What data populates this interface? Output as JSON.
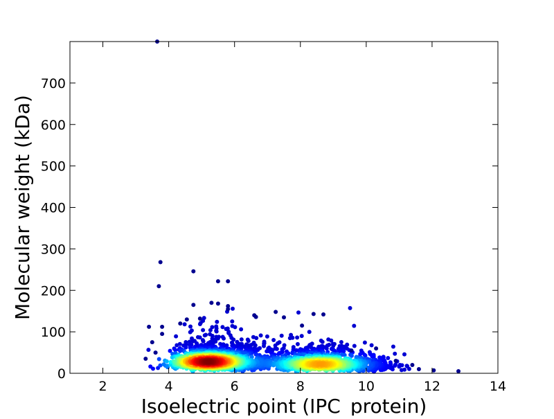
{
  "chart_data": {
    "type": "scatter",
    "title": "",
    "xlabel": "Isoelectric point (IPC_protein)",
    "ylabel": "Molecular weight (kDa)",
    "xlim": [
      1,
      14
    ],
    "ylim": [
      0,
      800
    ],
    "xticks": [
      2,
      4,
      6,
      8,
      10,
      12,
      14
    ],
    "yticks": [
      0,
      100,
      200,
      300,
      400,
      500,
      600,
      700
    ],
    "grid": false,
    "legend": "none",
    "colormap": "jet (point density: blue low, red high)",
    "colors": {
      "low": "#00008f",
      "mid_low": "#0080ff",
      "mid": "#40ffbf",
      "mid_high": "#ffff00",
      "high": "#ff4000",
      "max": "#800000"
    },
    "density_clusters": [
      {
        "center_pI": 5.2,
        "center_mw": 28,
        "peak": "max"
      },
      {
        "center_pI": 8.6,
        "center_mw": 22,
        "peak": "mid_high"
      }
    ],
    "outliers": [
      {
        "x": 3.65,
        "y": 800
      },
      {
        "x": 3.75,
        "y": 268
      },
      {
        "x": 4.75,
        "y": 246
      },
      {
        "x": 3.7,
        "y": 210
      },
      {
        "x": 5.5,
        "y": 222
      },
      {
        "x": 5.8,
        "y": 222
      },
      {
        "x": 5.3,
        "y": 170
      },
      {
        "x": 5.5,
        "y": 168
      },
      {
        "x": 4.75,
        "y": 165
      },
      {
        "x": 5.8,
        "y": 162
      },
      {
        "x": 5.8,
        "y": 155
      },
      {
        "x": 7.25,
        "y": 148
      },
      {
        "x": 8.4,
        "y": 143
      },
      {
        "x": 8.7,
        "y": 142
      },
      {
        "x": 6.6,
        "y": 140
      },
      {
        "x": 6.65,
        "y": 136
      },
      {
        "x": 7.5,
        "y": 135
      },
      {
        "x": 4.55,
        "y": 130
      },
      {
        "x": 4.95,
        "y": 132
      },
      {
        "x": 8.05,
        "y": 115
      },
      {
        "x": 3.4,
        "y": 112
      },
      {
        "x": 3.8,
        "y": 112
      },
      {
        "x": 4.35,
        "y": 120
      },
      {
        "x": 9.55,
        "y": 55
      },
      {
        "x": 10.3,
        "y": 60
      },
      {
        "x": 10.9,
        "y": 30
      },
      {
        "x": 11.4,
        "y": 20
      },
      {
        "x": 11.6,
        "y": 10
      },
      {
        "x": 12.05,
        "y": 7
      },
      {
        "x": 12.8,
        "y": 5
      },
      {
        "x": 3.3,
        "y": 35
      },
      {
        "x": 3.5,
        "y": 75
      },
      {
        "x": 3.8,
        "y": 95
      },
      {
        "x": 3.6,
        "y": 50
      }
    ]
  }
}
